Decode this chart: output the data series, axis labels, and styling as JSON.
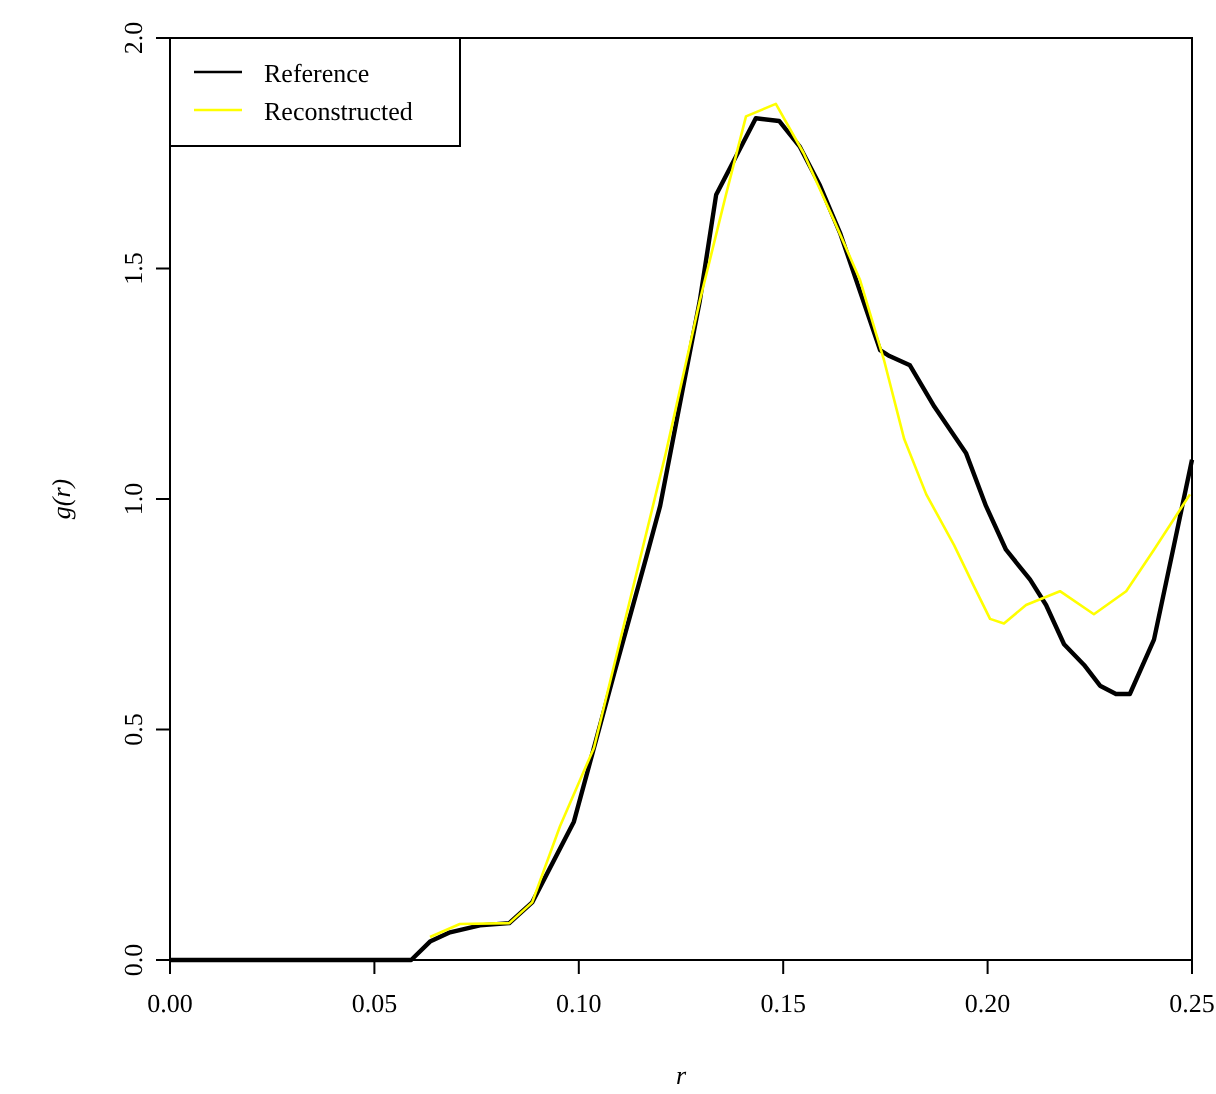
{
  "chart_data": {
    "type": "line",
    "xlabel": "r",
    "ylabel": "g(r)",
    "xlim": [
      0,
      0.25
    ],
    "ylim": [
      0,
      2
    ],
    "xticks": [
      {
        "value": 0,
        "label": "0.00"
      },
      {
        "value": 0.05,
        "label": "0.05"
      },
      {
        "value": 0.1,
        "label": "0.10"
      },
      {
        "value": 0.15,
        "label": "0.15"
      },
      {
        "value": 0.2,
        "label": "0.20"
      },
      {
        "value": 0.25,
        "label": "0.25"
      }
    ],
    "yticks": [
      {
        "value": 0,
        "label": "0.0"
      },
      {
        "value": 0.5,
        "label": "0.5"
      },
      {
        "value": 1,
        "label": "1.0"
      },
      {
        "value": 1.5,
        "label": "1.5"
      },
      {
        "value": 2,
        "label": "2.0"
      }
    ],
    "grid": false,
    "legend": "top left",
    "line_style": "solid",
    "marker": "none",
    "series": [
      {
        "name": "Reference",
        "color": "#000000",
        "x": [
          0,
          0.059,
          0.0636,
          0.0685,
          0.0758,
          0.083,
          0.0886,
          0.0988,
          0.1037,
          0.1086,
          0.1164,
          0.1199,
          0.1296,
          0.1336,
          0.1433,
          0.149,
          0.154,
          0.159,
          0.164,
          0.169,
          0.1737,
          0.176,
          0.181,
          0.187,
          0.1947,
          0.1996,
          0.2045,
          0.2104,
          0.2143,
          0.2187,
          0.2236,
          0.2275,
          0.2314,
          0.2348,
          0.2407,
          0.2456,
          0.25
        ],
        "values": [
          0,
          0,
          0.04,
          0.06,
          0.075,
          0.08,
          0.125,
          0.3,
          0.46,
          0.62,
          0.87,
          0.985,
          1.43,
          1.66,
          1.826,
          1.82,
          1.765,
          1.68,
          1.575,
          1.445,
          1.323,
          1.31,
          1.29,
          1.2,
          1.1,
          0.985,
          0.89,
          0.825,
          0.77,
          0.685,
          0.64,
          0.595,
          0.577,
          0.577,
          0.695,
          0.9,
          1.085
        ]
      },
      {
        "name": "Reconstructed",
        "color": "#ffff00",
        "x": [
          0.0636,
          0.0709,
          0.083,
          0.0886,
          0.0954,
          0.1037,
          0.1213,
          0.1296,
          0.136,
          0.1409,
          0.1482,
          0.155,
          0.1624,
          0.1688,
          0.1747,
          0.1796,
          0.185,
          0.1918,
          0.1967,
          0.2006,
          0.204,
          0.2094,
          0.2177,
          0.226,
          0.2339,
          0.2407,
          0.2495
        ],
        "values": [
          0.05,
          0.078,
          0.08,
          0.125,
          0.29,
          0.46,
          1.1,
          1.43,
          1.66,
          1.83,
          1.857,
          1.75,
          1.605,
          1.475,
          1.3,
          1.13,
          1.01,
          0.9,
          0.81,
          0.74,
          0.73,
          0.77,
          0.8,
          0.75,
          0.8,
          0.89,
          1.01
        ]
      }
    ]
  }
}
